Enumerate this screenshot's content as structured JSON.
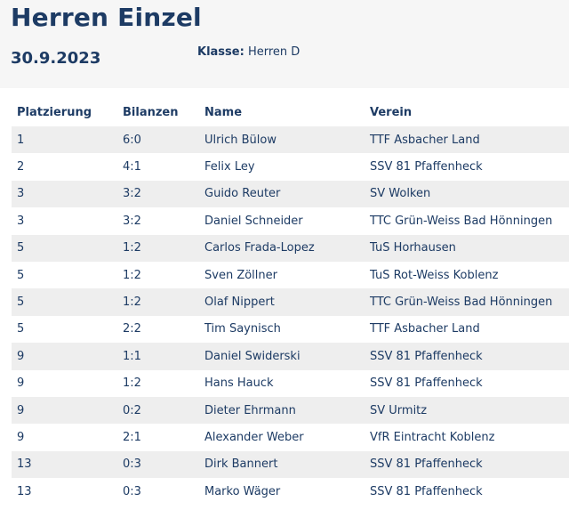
{
  "page": {
    "title": "Herren Einzel",
    "date": "30.9.2023",
    "klasse_label": "Klasse:",
    "klasse_value": "Herren D"
  },
  "table": {
    "headers": [
      "Platzierung",
      "Bilanzen",
      "Name",
      "Verein"
    ],
    "rows": [
      [
        "1",
        "6:0",
        "Ulrich Bülow",
        "TTF Asbacher Land"
      ],
      [
        "2",
        "4:1",
        "Felix Ley",
        "SSV 81 Pfaffenheck"
      ],
      [
        "3",
        "3:2",
        "Guido Reuter",
        "SV Wolken"
      ],
      [
        "3",
        "3:2",
        "Daniel Schneider",
        "TTC Grün-Weiss Bad Hönningen"
      ],
      [
        "5",
        "1:2",
        "Carlos Frada-Lopez",
        "TuS Horhausen"
      ],
      [
        "5",
        "1:2",
        "Sven Zöllner",
        "TuS Rot-Weiss Koblenz"
      ],
      [
        "5",
        "1:2",
        "Olaf Nippert",
        "TTC Grün-Weiss Bad Hönningen"
      ],
      [
        "5",
        "2:2",
        "Tim Saynisch",
        "TTF Asbacher Land"
      ],
      [
        "9",
        "1:1",
        "Daniel Swiderski",
        "SSV 81 Pfaffenheck"
      ],
      [
        "9",
        "1:2",
        "Hans Hauck",
        "SSV 81 Pfaffenheck"
      ],
      [
        "9",
        "0:2",
        "Dieter Ehrmann",
        "SV Urmitz"
      ],
      [
        "9",
        "2:1",
        "Alexander Weber",
        "VfR Eintracht Koblenz"
      ],
      [
        "13",
        "0:3",
        "Dirk Bannert",
        "SSV 81 Pfaffenheck"
      ],
      [
        "13",
        "0:3",
        "Marko Wäger",
        "SSV 81 Pfaffenheck"
      ]
    ]
  }
}
